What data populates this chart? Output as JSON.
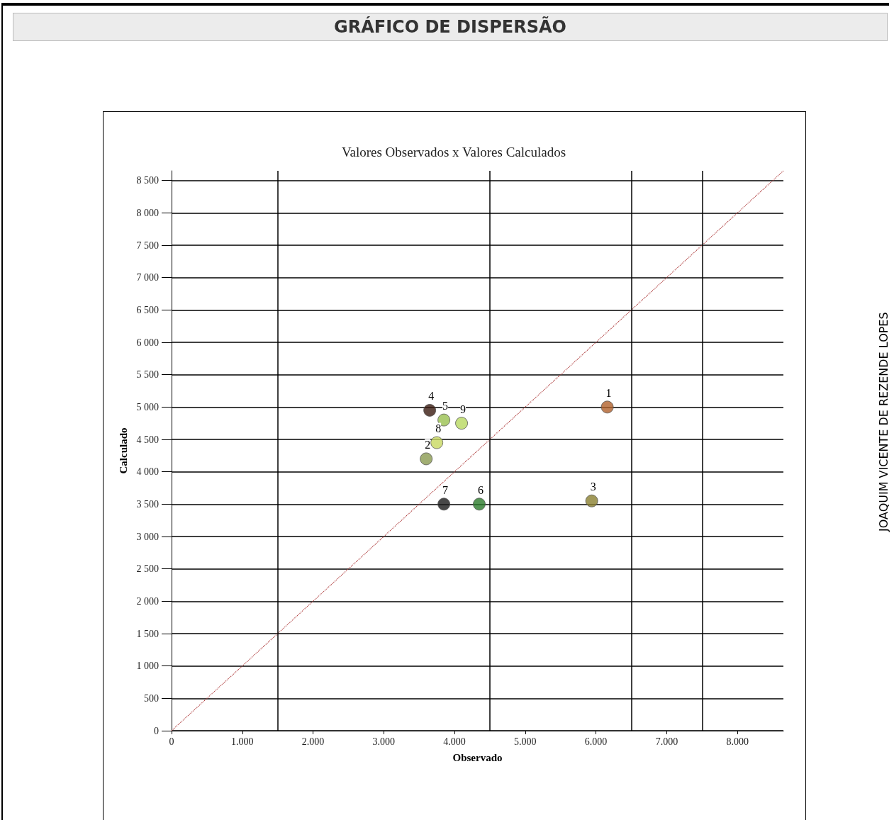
{
  "chart_data": {
    "type": "scatter",
    "title": "GRÁFICO DE DISPERSÃO",
    "subtitle": "Valores Observados x Valores Calculados",
    "xlabel": "Observado",
    "ylabel": "Calculado",
    "annotations": [
      "JOAQUIM VICENTE DE REZENDE LOPES",
      {
        "text": "1",
        "x": 6160,
        "y": 5000
      },
      {
        "text": "2",
        "x": 3600,
        "y": 4200
      },
      {
        "text": "3",
        "x": 5940,
        "y": 3550
      },
      {
        "text": "4",
        "x": 3650,
        "y": 4950
      },
      {
        "text": "5",
        "x": 3850,
        "y": 4800
      },
      {
        "text": "6",
        "x": 4350,
        "y": 3500
      },
      {
        "text": "7",
        "x": 3850,
        "y": 3500
      },
      {
        "text": "8",
        "x": 3750,
        "y": 4450
      },
      {
        "text": "9",
        "x": 4100,
        "y": 4750
      }
    ],
    "series": [
      {
        "x": [
          6160,
          3600,
          5940,
          3650,
          3850,
          4350,
          3850,
          3750,
          4100
        ],
        "values": [
          5000,
          4200,
          3550,
          4950,
          4800,
          3500,
          3500,
          4450,
          4750
        ],
        "colors": [
          "#b0602a",
          "#8a9a50",
          "#8a8030",
          "#3a1a10",
          "#9ac050",
          "#2a7a2a",
          "#1a1a1a",
          "#c8d860",
          "#b8d860"
        ],
        "marker": "circle"
      },
      {
        "type": "line",
        "x": [
          0,
          8650
        ],
        "values": [
          0,
          8650
        ],
        "color": "#b04040",
        "line_style": "dotted",
        "marker": "none"
      }
    ],
    "xlim": [
      0,
      8650
    ],
    "ylim": [
      0,
      8650
    ],
    "xticks": [
      0,
      {
        "value": 1000,
        "label": "1.000"
      },
      {
        "value": 2000,
        "label": "2.000"
      },
      {
        "value": 3000,
        "label": "3.000"
      },
      {
        "value": 4000,
        "label": "4.000"
      },
      {
        "value": 5000,
        "label": "5.000"
      },
      {
        "value": 6000,
        "label": "6.000"
      },
      {
        "value": 7000,
        "label": "7.000"
      },
      {
        "value": 8000,
        "label": "8.000"
      }
    ],
    "yticks": [
      0,
      500,
      {
        "value": 1000,
        "label": "1 000"
      },
      {
        "value": 1500,
        "label": "1 500"
      },
      {
        "value": 2000,
        "label": "2 000"
      },
      {
        "value": 2500,
        "label": "2 500"
      },
      {
        "value": 3000,
        "label": "3 000"
      },
      {
        "value": 3500,
        "label": "3 500"
      },
      {
        "value": 4000,
        "label": "4 000"
      },
      {
        "value": 4500,
        "label": "4 500"
      },
      {
        "value": 5000,
        "label": "5 000"
      },
      {
        "value": 5500,
        "label": "5 500"
      },
      {
        "value": 6000,
        "label": "6 000"
      },
      {
        "value": 6500,
        "label": "6 500"
      },
      {
        "value": 7000,
        "label": "7 000"
      },
      {
        "value": 7500,
        "label": "7 500"
      },
      {
        "value": 8000,
        "label": "8 000"
      },
      {
        "value": 8500,
        "label": "8 500"
      }
    ],
    "grid": "y",
    "ref_lines": [
      {
        "axis": "x",
        "value": 1500,
        "color": "#000000"
      },
      {
        "axis": "x",
        "value": 4500,
        "color": "#000000"
      },
      {
        "axis": "x",
        "value": 6500,
        "color": "#000000"
      },
      {
        "axis": "x",
        "value": 7500,
        "color": "#000000"
      }
    ]
  }
}
